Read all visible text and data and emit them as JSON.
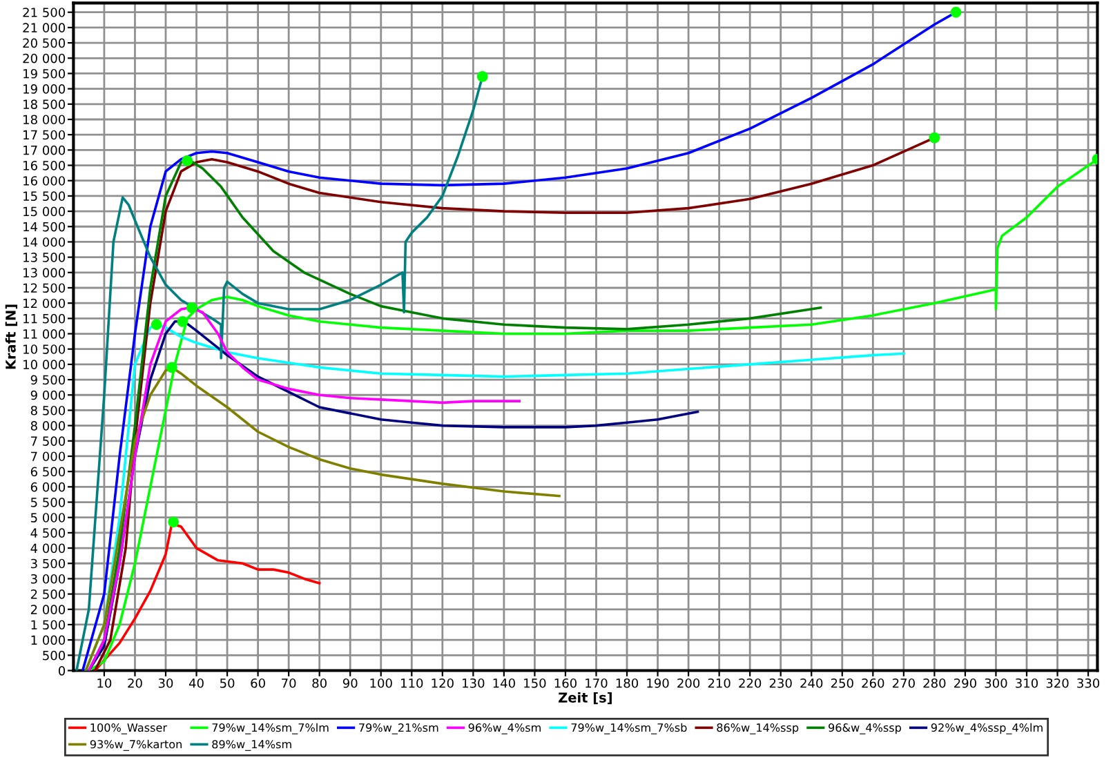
{
  "chart_data": {
    "type": "line",
    "xlabel": "Zeit [s]",
    "ylabel": "Kraft [N]",
    "xlim": [
      0,
      333
    ],
    "ylim": [
      0,
      21800
    ],
    "xticks": [
      10,
      20,
      30,
      40,
      50,
      60,
      70,
      80,
      90,
      100,
      110,
      120,
      130,
      140,
      150,
      160,
      170,
      180,
      190,
      200,
      210,
      220,
      230,
      240,
      250,
      260,
      270,
      280,
      290,
      300,
      310,
      320,
      330
    ],
    "yticks": [
      0,
      500,
      {
        "value": 1000,
        "label": "1 000"
      },
      {
        "value": 1500,
        "label": "1 500"
      },
      {
        "value": 2000,
        "label": "2 000"
      },
      {
        "value": 2500,
        "label": "2 500"
      },
      {
        "value": 3000,
        "label": "3 000"
      },
      {
        "value": 3500,
        "label": "3 500"
      },
      {
        "value": 4000,
        "label": "4 000"
      },
      {
        "value": 4500,
        "label": "4 500"
      },
      {
        "value": 5000,
        "label": "5 000"
      },
      {
        "value": 5500,
        "label": "5 500"
      },
      {
        "value": 6000,
        "label": "6 000"
      },
      {
        "value": 6500,
        "label": "6 500"
      },
      {
        "value": 7000,
        "label": "7 000"
      },
      {
        "value": 7500,
        "label": "7 500"
      },
      {
        "value": 8000,
        "label": "8 000"
      },
      {
        "value": 8500,
        "label": "8 500"
      },
      {
        "value": 9000,
        "label": "9 000"
      },
      {
        "value": 9500,
        "label": "9 500"
      },
      {
        "value": 10000,
        "label": "10 000"
      },
      {
        "value": 10500,
        "label": "10 500"
      },
      {
        "value": 11000,
        "label": "11 000"
      },
      {
        "value": 11500,
        "label": "11 500"
      },
      {
        "value": 12000,
        "label": "12 000"
      },
      {
        "value": 12500,
        "label": "12 500"
      },
      {
        "value": 13000,
        "label": "13 000"
      },
      {
        "value": 13500,
        "label": "13 500"
      },
      {
        "value": 14000,
        "label": "14 000"
      },
      {
        "value": 14500,
        "label": "14 500"
      },
      {
        "value": 15000,
        "label": "15 000"
      },
      {
        "value": 15500,
        "label": "15 500"
      },
      {
        "value": 16000,
        "label": "16 000"
      },
      {
        "value": 16500,
        "label": "16 500"
      },
      {
        "value": 17000,
        "label": "17 000"
      },
      {
        "value": 17500,
        "label": "17 500"
      },
      {
        "value": 18000,
        "label": "18 000"
      },
      {
        "value": 18500,
        "label": "18 500"
      },
      {
        "value": 19000,
        "label": "19 000"
      },
      {
        "value": 19500,
        "label": "19 500"
      },
      {
        "value": 20000,
        "label": "20 000"
      },
      {
        "value": 20500,
        "label": "20 500"
      },
      {
        "value": 21000,
        "label": "21 000"
      },
      {
        "value": 21500,
        "label": "21 500"
      }
    ],
    "grid": true,
    "legend": "bottom",
    "line_style": "solid",
    "series": [
      {
        "name": "100%_Wasser",
        "color": "#ff0000",
        "x": [
          7,
          15,
          20,
          25,
          30,
          32,
          35,
          40,
          47,
          55,
          60,
          65,
          70,
          75,
          80
        ],
        "values": [
          0,
          900,
          1700,
          2600,
          3800,
          4800,
          4700,
          4000,
          3600,
          3500,
          3300,
          3300,
          3200,
          3000,
          2850
        ]
      },
      {
        "name": "79%w_14%sm_7%lm",
        "color": "#00ff00",
        "x": [
          5,
          10,
          15,
          20,
          25,
          30,
          33,
          37,
          40,
          45,
          50,
          55,
          60,
          70,
          80,
          100,
          120,
          140,
          160,
          180,
          200,
          220,
          240,
          260,
          280,
          300,
          300,
          300.5,
          302,
          310,
          320,
          333
        ],
        "values": [
          0,
          300,
          1500,
          3500,
          6000,
          8500,
          10000,
          11500,
          11800,
          12100,
          12200,
          12100,
          11900,
          11600,
          11400,
          11200,
          11100,
          11000,
          11000,
          11100,
          11100,
          11200,
          11300,
          11600,
          12000,
          12450,
          11800,
          13800,
          14200,
          14800,
          15800,
          16700
        ]
      },
      {
        "name": "79%w_21%sm",
        "color": "#0000ff",
        "x": [
          3,
          10,
          15,
          20,
          25,
          30,
          35,
          40,
          45,
          50,
          60,
          70,
          80,
          100,
          120,
          140,
          160,
          180,
          200,
          220,
          240,
          260,
          280,
          287
        ],
        "values": [
          0,
          2500,
          7000,
          11000,
          14500,
          16300,
          16700,
          16900,
          16950,
          16900,
          16600,
          16300,
          16100,
          15900,
          15850,
          15900,
          16100,
          16400,
          16900,
          17700,
          18700,
          19800,
          21100,
          21500
        ]
      },
      {
        "name": "96%w_4%sm",
        "color": "#ff00ff",
        "x": [
          5,
          10,
          15,
          20,
          25,
          30,
          35,
          38,
          42,
          47,
          50,
          55,
          60,
          70,
          80,
          90,
          100,
          110,
          120,
          130,
          145
        ],
        "values": [
          0,
          1000,
          3500,
          7000,
          10000,
          11400,
          11800,
          11850,
          11700,
          11000,
          10400,
          9900,
          9500,
          9200,
          9000,
          8900,
          8850,
          8800,
          8750,
          8800,
          8800
        ]
      },
      {
        "name": "79%w_14%sm_7%sb",
        "color": "#00ffff",
        "x": [
          4,
          10,
          15,
          20,
          25,
          27,
          30,
          35,
          40,
          50,
          60,
          80,
          100,
          120,
          140,
          160,
          180,
          200,
          220,
          240,
          260,
          270
        ],
        "values": [
          0,
          1500,
          5000,
          10000,
          11200,
          11300,
          11200,
          10900,
          10700,
          10400,
          10200,
          9900,
          9700,
          9650,
          9600,
          9650,
          9700,
          9850,
          10000,
          10150,
          10300,
          10350
        ]
      },
      {
        "name": "86%w_14%ssp",
        "color": "#800000",
        "x": [
          7,
          12,
          17,
          20,
          25,
          30,
          35,
          40,
          45,
          50,
          60,
          70,
          80,
          100,
          120,
          140,
          160,
          180,
          200,
          220,
          240,
          260,
          280
        ],
        "values": [
          0,
          1000,
          4000,
          7500,
          12000,
          15000,
          16300,
          16600,
          16700,
          16600,
          16300,
          15900,
          15600,
          15300,
          15100,
          15000,
          14950,
          14950,
          15100,
          15400,
          15900,
          16500,
          17400
        ]
      },
      {
        "name": "96&w_4%ssp",
        "color": "#008000",
        "x": [
          5,
          10,
          15,
          20,
          25,
          30,
          35,
          38,
          42,
          48,
          55,
          65,
          75,
          90,
          100,
          110,
          120,
          140,
          160,
          180,
          200,
          220,
          243
        ],
        "values": [
          0,
          1000,
          4000,
          8000,
          12500,
          15500,
          16600,
          16650,
          16400,
          15800,
          14800,
          13700,
          13000,
          12300,
          11900,
          11700,
          11500,
          11300,
          11200,
          11150,
          11300,
          11500,
          11850
        ]
      },
      {
        "name": "92%w_4%ssp_4%lm",
        "color": "#000080",
        "x": [
          5,
          10,
          15,
          20,
          25,
          30,
          33,
          36,
          40,
          45,
          50,
          60,
          70,
          80,
          90,
          100,
          110,
          120,
          140,
          160,
          170,
          180,
          190,
          203
        ],
        "values": [
          0,
          800,
          3500,
          7000,
          9500,
          11000,
          11400,
          11400,
          11100,
          10700,
          10300,
          9600,
          9100,
          8600,
          8400,
          8200,
          8100,
          8000,
          7950,
          7950,
          8000,
          8100,
          8200,
          8450
        ]
      },
      {
        "name": "93%w_7%karton",
        "color": "#808000",
        "x": [
          4,
          10,
          15,
          20,
          25,
          30,
          32,
          35,
          40,
          50,
          60,
          70,
          80,
          90,
          100,
          120,
          140,
          158
        ],
        "values": [
          0,
          1500,
          4500,
          7500,
          9000,
          9800,
          9900,
          9700,
          9300,
          8600,
          7800,
          7300,
          6900,
          6600,
          6400,
          6100,
          5850,
          5700
        ]
      },
      {
        "name": "89%w_14%sm",
        "color": "#008080",
        "x": [
          1,
          5,
          10,
          13,
          16,
          18,
          20,
          25,
          30,
          35,
          40,
          45,
          48,
          48,
          49,
          50,
          55,
          60,
          70,
          80,
          90,
          100,
          107,
          107.5,
          108,
          110,
          115,
          120,
          125,
          130,
          133
        ],
        "values": [
          0,
          2000,
          9000,
          14000,
          15450,
          15200,
          14700,
          13500,
          12600,
          12100,
          11800,
          11500,
          11300,
          10200,
          12500,
          12700,
          12300,
          12000,
          11800,
          11800,
          12100,
          12600,
          13000,
          11700,
          14000,
          14300,
          14800,
          15500,
          16800,
          18300,
          19400
        ]
      },
      {
        "type": "scatter",
        "marker": "circle",
        "color": "#00ff00",
        "x": [
          32.5,
          333,
          287,
          38.5,
          27,
          280,
          37,
          35.5,
          32,
          133
        ],
        "values": [
          4850,
          16700,
          21500,
          11850,
          11300,
          17400,
          16650,
          11400,
          9900,
          19400
        ]
      }
    ]
  }
}
